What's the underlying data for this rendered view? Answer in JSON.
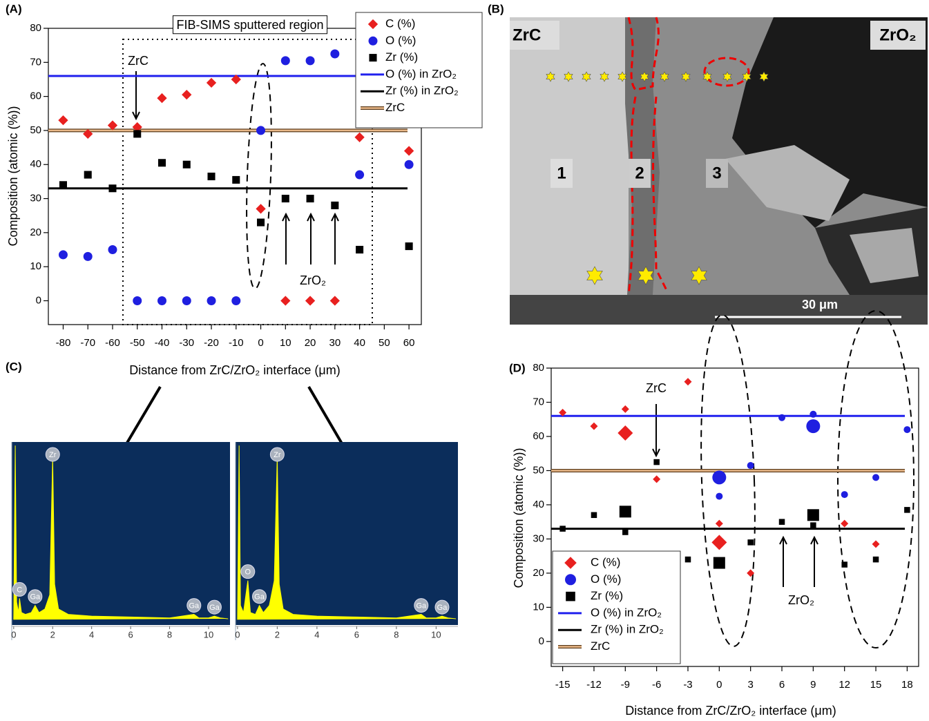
{
  "chart_data": [
    {
      "panel": "(A)",
      "type": "scatter",
      "xlabel": "Distance from ZrC/ZrO₂ interface (μm)",
      "ylabel": "Composition (atomic (%))",
      "xlim": [
        -86,
        65
      ],
      "ylim": [
        -7,
        80
      ],
      "xticks": [
        -80,
        -70,
        -60,
        -50,
        -40,
        -30,
        -20,
        -10,
        0,
        10,
        20,
        30,
        40,
        50,
        60
      ],
      "yticks": [
        0,
        10,
        20,
        30,
        40,
        50,
        60,
        70,
        80
      ],
      "legend": "upper right",
      "series": [
        {
          "name": "C (%)",
          "color": "#e8201f",
          "marker": "diamond",
          "x": [
            -80,
            -70,
            -60,
            -50,
            -40,
            -30,
            -20,
            -10,
            0,
            10,
            20,
            30,
            40,
            60
          ],
          "values": [
            53,
            49,
            51.5,
            51,
            59.5,
            60.5,
            64,
            65,
            27,
            0,
            0,
            0,
            48,
            44
          ]
        },
        {
          "name": "O (%)",
          "color": "#1f1fe0",
          "marker": "circle",
          "x": [
            -80,
            -70,
            -60,
            -50,
            -40,
            -30,
            -20,
            -10,
            0,
            10,
            20,
            30,
            40,
            60
          ],
          "values": [
            13.5,
            13,
            15,
            0,
            0,
            0,
            0,
            0,
            50,
            70.5,
            70.5,
            72.5,
            37,
            40
          ]
        },
        {
          "name": "Zr (%)",
          "color": "#000000",
          "marker": "square",
          "x": [
            -80,
            -70,
            -60,
            -50,
            -40,
            -30,
            -20,
            -10,
            0,
            10,
            20,
            30,
            40,
            60
          ],
          "values": [
            34,
            37,
            33,
            49,
            40.5,
            40,
            36.5,
            35.5,
            23,
            30,
            30,
            28,
            15,
            16
          ]
        }
      ],
      "hlines": [
        {
          "name": "O (%) in ZrO₂",
          "color": "#2020ee",
          "value": 66
        },
        {
          "name": "Zr (%) in ZrO₂",
          "color": "#000000",
          "value": 33
        },
        {
          "name": "ZrC",
          "color": "#eab98a",
          "edge_color": "#5a3a1a",
          "value": 50
        }
      ],
      "annotations": [
        "FIB-SIMS sputtered region",
        "ZrC",
        "ZrO₂"
      ]
    },
    {
      "panel": "(D)",
      "type": "scatter",
      "xlabel": "Distance from ZrC/ZrO₂ interface (μm)",
      "ylabel": "Composition (atomic (%))",
      "xlim": [
        -16.1,
        19.1
      ],
      "ylim": [
        -7.3,
        80
      ],
      "xticks": [
        -15,
        -12,
        -9,
        -6,
        -3,
        0,
        3,
        6,
        9,
        12,
        15,
        18
      ],
      "yticks": [
        0,
        10,
        20,
        30,
        40,
        50,
        60,
        70,
        80
      ],
      "legend": "lower left",
      "series": [
        {
          "name": "C (%)",
          "color": "#e8201f",
          "marker": "diamond",
          "x": [
            -15,
            -12,
            -9,
            -9,
            -6,
            -3,
            0,
            0,
            3,
            12,
            15
          ],
          "values": [
            67,
            63,
            68,
            61,
            47.5,
            76,
            34.5,
            29,
            20,
            34.5,
            28.5
          ],
          "sizes": [
            1,
            1,
            1,
            2,
            1,
            1,
            1,
            2,
            1,
            1,
            1
          ]
        },
        {
          "name": "O (%)",
          "color": "#1f1fe0",
          "marker": "circle",
          "x": [
            0,
            0,
            3,
            6,
            9,
            9,
            12,
            15,
            18
          ],
          "values": [
            48,
            42.5,
            51.5,
            65.5,
            66.5,
            63,
            43,
            48,
            62
          ],
          "sizes": [
            2,
            1,
            1,
            1,
            1,
            2,
            1,
            1,
            1
          ]
        },
        {
          "name": "Zr (%)",
          "color": "#000000",
          "marker": "square",
          "x": [
            -15,
            -12,
            -9,
            -9,
            -6,
            -3,
            0,
            3,
            6,
            9,
            9,
            12,
            15,
            18
          ],
          "values": [
            33,
            37,
            38,
            32,
            52.5,
            24,
            23,
            29,
            35,
            37,
            34,
            22.5,
            24,
            38.5
          ],
          "sizes": [
            1,
            1,
            2,
            1,
            1,
            1,
            2,
            1,
            1,
            2,
            1,
            1,
            1,
            1
          ]
        }
      ],
      "hlines": [
        {
          "name": "O (%) in ZrO₂",
          "color": "#2020ee",
          "value": 66
        },
        {
          "name": "Zr (%) in ZrO₂",
          "color": "#000000",
          "value": 33
        },
        {
          "name": "ZrC",
          "color": "#eab98a",
          "edge_color": "#5a3a1a",
          "value": 50
        }
      ],
      "annotations": [
        "ZrC",
        "ZrO₂"
      ]
    },
    {
      "panel": "(C)",
      "type": "area",
      "color": "#ffff00",
      "background": "#0b2d5b",
      "xlim": [
        -0.1,
        11.1
      ],
      "ylim": [
        -3,
        100
      ],
      "xticks": [
        0,
        2,
        4,
        6,
        8,
        10
      ],
      "x": [
        0,
        0.08,
        0.15,
        0.25,
        0.3,
        0.4,
        0.6,
        0.9,
        1.1,
        1.3,
        1.6,
        1.85,
        2.0,
        2.1,
        2.3,
        2.8,
        4,
        6,
        8,
        9.25,
        9.5,
        10,
        10.3,
        10.6,
        11
      ],
      "values": [
        0,
        98,
        10,
        4,
        12,
        4,
        3,
        4,
        8,
        4,
        6,
        14,
        92,
        20,
        6,
        3,
        2,
        1.5,
        1,
        3,
        1,
        1,
        2,
        1,
        0.5
      ],
      "peak_labels": [
        {
          "text": "C",
          "x": 0.3
        },
        {
          "text": "Ga",
          "x": 1.1
        },
        {
          "text": "Zr",
          "x": 2.0
        },
        {
          "text": "Ga",
          "x": 9.25
        },
        {
          "text": "Ga",
          "x": 10.3
        }
      ]
    },
    {
      "type": "area",
      "color": "#ffff00",
      "background": "#0b2d5b",
      "xlim": [
        -0.1,
        11.1
      ],
      "ylim": [
        -3,
        100
      ],
      "xticks": [
        0,
        2,
        4,
        6,
        8,
        10
      ],
      "x": [
        0,
        0.08,
        0.15,
        0.3,
        0.52,
        0.65,
        0.9,
        1.1,
        1.3,
        1.6,
        1.85,
        2.0,
        2.1,
        2.3,
        2.8,
        4,
        6,
        8,
        9.25,
        9.5,
        10,
        10.3,
        10.6,
        11
      ],
      "values": [
        0,
        98,
        8,
        4,
        22,
        4,
        3,
        8,
        4,
        8,
        22,
        92,
        20,
        6,
        3,
        2,
        1.5,
        1,
        3,
        1,
        1,
        2,
        1,
        0.5
      ],
      "peak_labels": [
        {
          "text": "O",
          "x": 0.52
        },
        {
          "text": "Ga",
          "x": 1.1
        },
        {
          "text": "Zr",
          "x": 2.0
        },
        {
          "text": "Ga",
          "x": 9.25
        },
        {
          "text": "Ga",
          "x": 10.3
        }
      ]
    }
  ],
  "micrograph": {
    "panel": "(B)",
    "left_phase": "ZrC",
    "right_phase": "ZrO₂",
    "regions": [
      "1",
      "2",
      "3"
    ],
    "scale_bar": "30 μm"
  }
}
